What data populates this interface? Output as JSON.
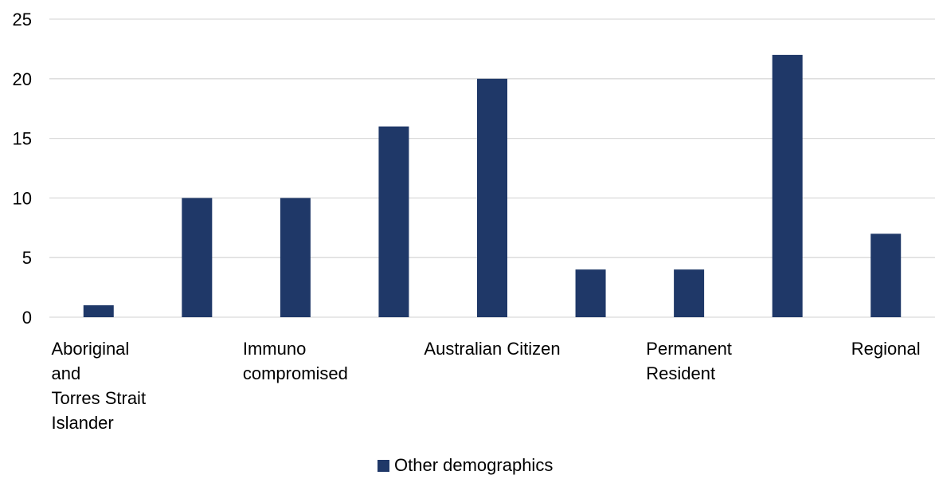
{
  "chart_data": {
    "type": "bar",
    "categories": [
      "Aboriginal and Torres Strait Islander",
      "",
      "Immuno compromised",
      "",
      "Australian Citizen",
      "",
      "Permanent Resident",
      "",
      "Regional"
    ],
    "category_label_lines": [
      [
        "Aboriginal",
        "and",
        "Torres Strait",
        "Islander"
      ],
      [],
      [
        "Immuno",
        "compromised"
      ],
      [],
      [
        "Australian Citizen"
      ],
      [],
      [
        "Permanent",
        "Resident"
      ],
      [],
      [
        "Regional"
      ]
    ],
    "series": [
      {
        "name": "Other demographics",
        "values": [
          1,
          10,
          10,
          16,
          20,
          4,
          4,
          22,
          7
        ]
      }
    ],
    "y_ticks": [
      "0",
      "5",
      "10",
      "15",
      "20",
      "25"
    ],
    "ylim": [
      0,
      25
    ],
    "title": "",
    "xlabel": "",
    "ylabel": "",
    "grid": true,
    "legend_position": "bottom",
    "bar_color": "#1f3868"
  }
}
